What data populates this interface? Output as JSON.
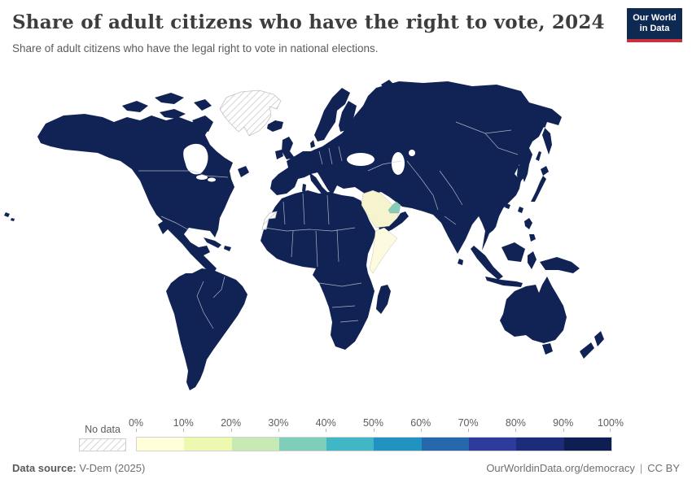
{
  "header": {
    "title": "Share of adult citizens who have the right to vote, 2024",
    "subtitle": "Share of adult citizens who have the legal right to vote in national elections.",
    "logo": {
      "line1": "Our World",
      "line2": "in Data"
    }
  },
  "colors": {
    "land": "#112355",
    "border": "#c7cdd8",
    "logo_bg": "#0f2a52",
    "logo_stripe": "#c9303c"
  },
  "chart_data": {
    "type": "choropleth_map",
    "title": "Share of adult citizens who have the right to vote, 2024",
    "subtitle": "Share of adult citizens who have the legal right to vote in national elections.",
    "unit": "%",
    "legend": {
      "position": "bottom",
      "no_data_label": "No data",
      "ticks": [
        "0%",
        "10%",
        "20%",
        "30%",
        "40%",
        "50%",
        "60%",
        "70%",
        "80%",
        "90%",
        "100%"
      ],
      "bins": [
        {
          "range": "0-10%",
          "color": "#ffffd9"
        },
        {
          "range": "10-20%",
          "color": "#eef8b1"
        },
        {
          "range": "20-30%",
          "color": "#c7e9b4"
        },
        {
          "range": "30-40%",
          "color": "#7fcdbb"
        },
        {
          "range": "40-50%",
          "color": "#41b6c4"
        },
        {
          "range": "50-60%",
          "color": "#2193c1"
        },
        {
          "range": "60-70%",
          "color": "#2767ac"
        },
        {
          "range": "70-80%",
          "color": "#2e3b9c"
        },
        {
          "range": "80-90%",
          "color": "#1d2c78"
        },
        {
          "range": "90-100%",
          "color": "#0e1e52"
        }
      ]
    },
    "regions": {
      "default_land": {
        "label": "Most countries (Americas, Europe, Africa, Asia-Pacific)",
        "bin": "90-100%",
        "color": "#112355"
      },
      "saudi_arabia": {
        "label": "Saudi Arabia",
        "bin": "0-10%",
        "color": "#f6f3cf"
      },
      "somalia": {
        "label": "Somalia",
        "bin": "0-10%",
        "color": "#fcfadf"
      },
      "united_arab_emirates": {
        "label": "United Arab Emirates",
        "bin": "30-40%",
        "color": "#85ccba"
      },
      "greenland": {
        "label": "Greenland",
        "bin": "No data"
      },
      "western_sahara": {
        "label": "Western Sahara",
        "bin": "No data"
      }
    }
  },
  "footer": {
    "source_label": "Data source:",
    "source_value": "V-Dem (2025)",
    "link": "OurWorldinData.org/democracy",
    "separator": "|",
    "license": "CC BY"
  }
}
